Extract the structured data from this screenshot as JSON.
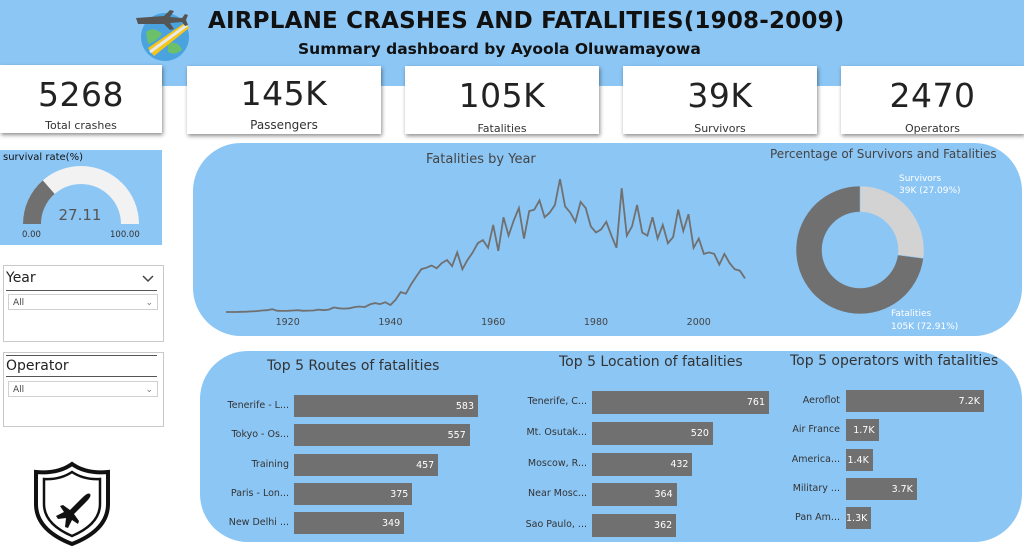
{
  "header": {
    "title": "AIRPLANE CRASHES AND FATALITIES(1908-2009)",
    "subtitle": "Summary dashboard by Ayoola Oluwamayowa"
  },
  "kpis": [
    {
      "value": "5268",
      "label": "Total crashes"
    },
    {
      "value": "145K",
      "label": "Passengers"
    },
    {
      "value": "105K",
      "label": "Fatalities"
    },
    {
      "value": "39K",
      "label": "Survivors"
    },
    {
      "value": "2470",
      "label": "Operators"
    }
  ],
  "survival": {
    "title": "survival rate(%)",
    "value": "27.11",
    "min": "0.00",
    "max": "100.00",
    "fraction": 0.2711
  },
  "slicers": [
    {
      "title": "Year",
      "selected": "All"
    },
    {
      "title": "Operator",
      "selected": "All"
    }
  ],
  "icons": {
    "header_logo": "airplane-globe-icon",
    "badge": "airplane-shield-icon"
  },
  "colors": {
    "panel": "#8cc6f5",
    "bar": "#707070",
    "donut_survivors": "#d3d3d3",
    "donut_fatalities": "#707070"
  },
  "chart_data": [
    {
      "type": "line",
      "title": "Fatalities by Year",
      "xlabel": "",
      "ylabel": "",
      "xlim": [
        1908,
        2009
      ],
      "xticks": [
        "1920",
        "1940",
        "1960",
        "1980",
        "2000"
      ],
      "x": [
        1908,
        1909,
        1910,
        1911,
        1912,
        1913,
        1914,
        1915,
        1916,
        1917,
        1918,
        1919,
        1920,
        1921,
        1922,
        1923,
        1924,
        1925,
        1926,
        1927,
        1928,
        1929,
        1930,
        1931,
        1932,
        1933,
        1934,
        1935,
        1936,
        1937,
        1938,
        1939,
        1940,
        1941,
        1942,
        1943,
        1944,
        1945,
        1946,
        1947,
        1948,
        1949,
        1950,
        1951,
        1952,
        1953,
        1954,
        1955,
        1956,
        1957,
        1958,
        1959,
        1960,
        1961,
        1962,
        1963,
        1964,
        1965,
        1966,
        1967,
        1968,
        1969,
        1970,
        1971,
        1972,
        1973,
        1974,
        1975,
        1976,
        1977,
        1978,
        1979,
        1980,
        1981,
        1982,
        1983,
        1984,
        1985,
        1986,
        1987,
        1988,
        1989,
        1990,
        1991,
        1992,
        1993,
        1994,
        1995,
        1996,
        1997,
        1998,
        1999,
        2000,
        2001,
        2002,
        2003,
        2004,
        2005,
        2006,
        2007,
        2008,
        2009
      ],
      "y": [
        1,
        0,
        1,
        5,
        10,
        20,
        30,
        50,
        60,
        90,
        40,
        35,
        40,
        50,
        60,
        40,
        45,
        50,
        80,
        60,
        80,
        150,
        120,
        110,
        120,
        160,
        180,
        160,
        250,
        290,
        260,
        320,
        230,
        400,
        650,
        600,
        900,
        1150,
        1400,
        1450,
        1520,
        1430,
        1600,
        1700,
        1500,
        1950,
        1400,
        1700,
        1950,
        2250,
        2350,
        2100,
        2850,
        2000,
        3100,
        2500,
        3000,
        3400,
        2400,
        3300,
        3350,
        3650,
        3100,
        3250,
        3500,
        4350,
        3450,
        3250,
        2950,
        3600,
        3400,
        2800,
        2600,
        2700,
        2950,
        2500,
        2100,
        4050,
        2500,
        2800,
        3500,
        2600,
        2500,
        3100,
        2400,
        2850,
        2250,
        2450,
        3350,
        2650,
        3200,
        2100,
        2400,
        1900,
        1950,
        1900,
        1550,
        1900,
        1600,
        1400,
        1350,
        1100
      ]
    },
    {
      "type": "pie",
      "title": "Percentage of Survivors and Fatalities",
      "slices": [
        {
          "name": "Survivors",
          "label": "39K (27.09%)",
          "value": 27.09
        },
        {
          "name": "Fatalities",
          "label": "105K (72.91%)",
          "value": 72.91
        }
      ]
    },
    {
      "type": "bar",
      "title": "Top 5 Routes of fatalities",
      "categories": [
        "Tenerife - L...",
        "Tokyo - Os...",
        "Training",
        "Paris - Lon...",
        "New Delhi ..."
      ],
      "values": [
        583,
        557,
        457,
        375,
        349
      ],
      "value_labels": [
        "583",
        "557",
        "457",
        "375",
        "349"
      ],
      "xlim": [
        0,
        583
      ]
    },
    {
      "type": "bar",
      "title": "Top 5 Location of fatalities",
      "categories": [
        "Tenerife, C...",
        "Mt. Osutak...",
        "Moscow, R...",
        "Near Mosc...",
        "Sao Paulo, ..."
      ],
      "values": [
        761,
        520,
        432,
        364,
        362
      ],
      "value_labels": [
        "761",
        "520",
        "432",
        "364",
        "362"
      ],
      "xlim": [
        0,
        761
      ]
    },
    {
      "type": "bar",
      "title": "Top 5 operators with fatalities",
      "categories": [
        "Aeroflot",
        "Air France",
        "America...",
        "Military ...",
        "Pan Am..."
      ],
      "values": [
        7200,
        1700,
        1400,
        3700,
        1300
      ],
      "value_labels": [
        "7.2K",
        "1.7K",
        "1.4K",
        "3.7K",
        "1.3K"
      ],
      "xlim": [
        0,
        7200
      ]
    }
  ]
}
